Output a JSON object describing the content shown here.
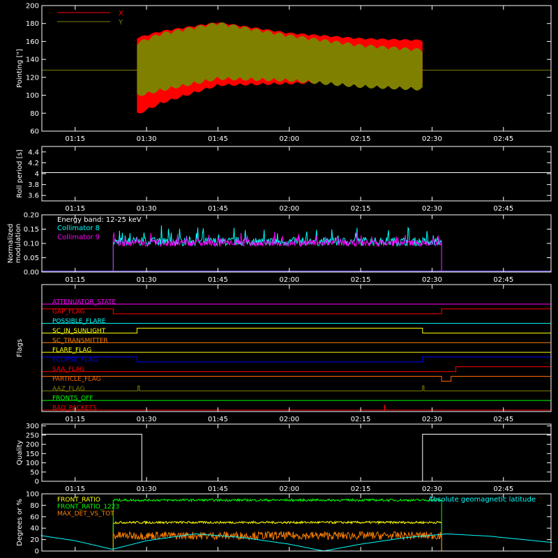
{
  "time_ticks": [
    "01:15",
    "01:30",
    "01:45",
    "02:00",
    "02:15",
    "02:30",
    "02:45"
  ],
  "chart_data": [
    {
      "type": "area",
      "ylabel": "Pointing [\"]",
      "ylim": [
        60,
        200
      ],
      "yticks": [
        60,
        80,
        100,
        120,
        140,
        160,
        180,
        200
      ],
      "xrange": [
        "01:08",
        "02:55"
      ],
      "legend_placement": "top-left",
      "series": [
        {
          "name": "X",
          "color": "#ff0000",
          "start": "01:28",
          "end": "02:28",
          "envelope_upper": [
            [
              1.47,
              165
            ],
            [
              1.55,
              172
            ],
            [
              1.75,
              182
            ],
            [
              2.0,
              170
            ],
            [
              2.25,
              164
            ],
            [
              2.47,
              162
            ]
          ],
          "envelope_lower": [
            [
              1.47,
              78
            ],
            [
              1.55,
              90
            ],
            [
              1.75,
              110
            ],
            [
              2.0,
              112
            ],
            [
              2.25,
              115
            ],
            [
              2.47,
              110
            ]
          ]
        },
        {
          "name": "Y",
          "color": "#808000",
          "start": "01:28",
          "end": "02:28",
          "envelope_upper": [
            [
              1.47,
              160
            ],
            [
              1.55,
              170
            ],
            [
              1.75,
              182
            ],
            [
              2.0,
              168
            ],
            [
              2.25,
              157
            ],
            [
              2.47,
              152
            ]
          ],
          "envelope_lower": [
            [
              1.47,
              98
            ],
            [
              1.55,
              104
            ],
            [
              1.75,
              117
            ],
            [
              2.0,
              115
            ],
            [
              2.25,
              108
            ],
            [
              2.47,
              105
            ]
          ]
        }
      ],
      "reference_line": 128
    },
    {
      "type": "line",
      "ylabel": "Roll period [s]",
      "ylim": [
        3.5,
        4.5
      ],
      "yticks": [
        3.6,
        3.8,
        4.0,
        4.2,
        4.4
      ],
      "series": [
        {
          "color": "#ffffff",
          "values": [
            4.02
          ]
        }
      ]
    },
    {
      "type": "line",
      "ylabel_lines": [
        "Normalized",
        "modulation"
      ],
      "ylim": [
        0,
        0.2
      ],
      "yticks": [
        "0.00",
        "0.05",
        "0.10",
        "0.15",
        "0.20"
      ],
      "annotation": "Energy band:  12-25 keV",
      "series": [
        {
          "name": "Collimator 8",
          "color": "#00ffff",
          "start": "01:23",
          "end": "02:32",
          "mean": 0.105,
          "spread": 0.03
        },
        {
          "name": "Collimator 9",
          "color": "#ff00ff",
          "start": "01:23",
          "end": "02:32",
          "mean": 0.1,
          "spread": 0.022
        }
      ],
      "baseline_color": "#6a5acd"
    },
    {
      "type": "line",
      "ylabel": "Flags",
      "flags": [
        {
          "name": "ATTENUATOR_STATE",
          "color": "#ff00ff",
          "high": []
        },
        {
          "name": "GAP_FLAG",
          "color": "#ff0000",
          "high": [
            [
              "01:08",
              "01:23"
            ],
            [
              "02:32",
              "02:55"
            ]
          ]
        },
        {
          "name": "POSSIBLE_FLARE",
          "color": "#00ffff",
          "high": []
        },
        {
          "name": "SC_IN_SUNLIGHT",
          "color": "#ffff00",
          "high": [
            [
              "01:28",
              "02:28"
            ]
          ]
        },
        {
          "name": "SC_TRANSMITTER",
          "color": "#ff8000",
          "high": []
        },
        {
          "name": "FLARE_FLAG",
          "color": "#ffff00",
          "high": []
        },
        {
          "name": "ECLIPSE_FLAG",
          "color": "#0000ff",
          "high": [
            [
              "01:08",
              "01:28"
            ],
            [
              "02:28",
              "02:55"
            ]
          ]
        },
        {
          "name": "SAA_FLAG",
          "color": "#ff0000",
          "high": [
            [
              "02:35",
              "02:55"
            ]
          ]
        },
        {
          "name": "PARTICLE_FLAG",
          "color": "#ff6600",
          "high": [
            [
              "01:08",
              "02:32"
            ],
            [
              "02:34",
              "02:55"
            ]
          ]
        },
        {
          "name": "AAZ_FLAG",
          "color": "#808000",
          "high": [
            [
              "01:28.2",
              "01:28.5"
            ],
            [
              "02:28",
              "02:28.3"
            ]
          ]
        },
        {
          "name": "FRONTS_OFF",
          "color": "#00ff00",
          "high": []
        },
        {
          "name": "BAD_PACKETS",
          "color": "#ff0000",
          "high": [
            [
              "02:20",
              "02:20.1"
            ]
          ]
        }
      ]
    },
    {
      "type": "line",
      "ylabel": "Quality",
      "ylim": [
        0,
        310
      ],
      "yticks": [
        0,
        50,
        100,
        150,
        200,
        250,
        300
      ],
      "series": [
        {
          "color": "#ffffff",
          "steps": [
            [
              "01:08",
              255
            ],
            [
              "01:29",
              0
            ],
            [
              "02:28",
              255
            ],
            [
              "02:55",
              255
            ]
          ]
        }
      ]
    },
    {
      "type": "line",
      "ylabel": "Degrees or %",
      "ylim": [
        0,
        100
      ],
      "yticks": [
        0,
        20,
        40,
        60,
        80,
        100
      ],
      "series": [
        {
          "name": "FRONT_RATIO",
          "color": "#ffff00",
          "start": "01:23",
          "end": "02:32",
          "mean": 50,
          "spread": 2
        },
        {
          "name": "FRONT_RATIO_1223",
          "color": "#00ff00",
          "start": "01:23",
          "end": "02:32",
          "mean": 89,
          "spread": 2
        },
        {
          "name": "MAX_DET_VS_TOT",
          "color": "#ff8000",
          "start": "01:23",
          "end": "02:32",
          "mean": 27,
          "spread": 7
        },
        {
          "name": "Absolute geomagnetic latitude",
          "color": "#00ffff",
          "legend_side": "right",
          "points": [
            [
              1.13,
              27
            ],
            [
              1.25,
              18
            ],
            [
              1.38,
              3
            ],
            [
              1.5,
              18
            ],
            [
              1.67,
              30
            ],
            [
              1.83,
              24
            ],
            [
              2.0,
              12
            ],
            [
              2.12,
              0
            ],
            [
              2.25,
              12
            ],
            [
              2.4,
              23
            ],
            [
              2.55,
              30
            ],
            [
              2.7,
              26
            ],
            [
              2.92,
              15
            ]
          ]
        }
      ]
    }
  ]
}
